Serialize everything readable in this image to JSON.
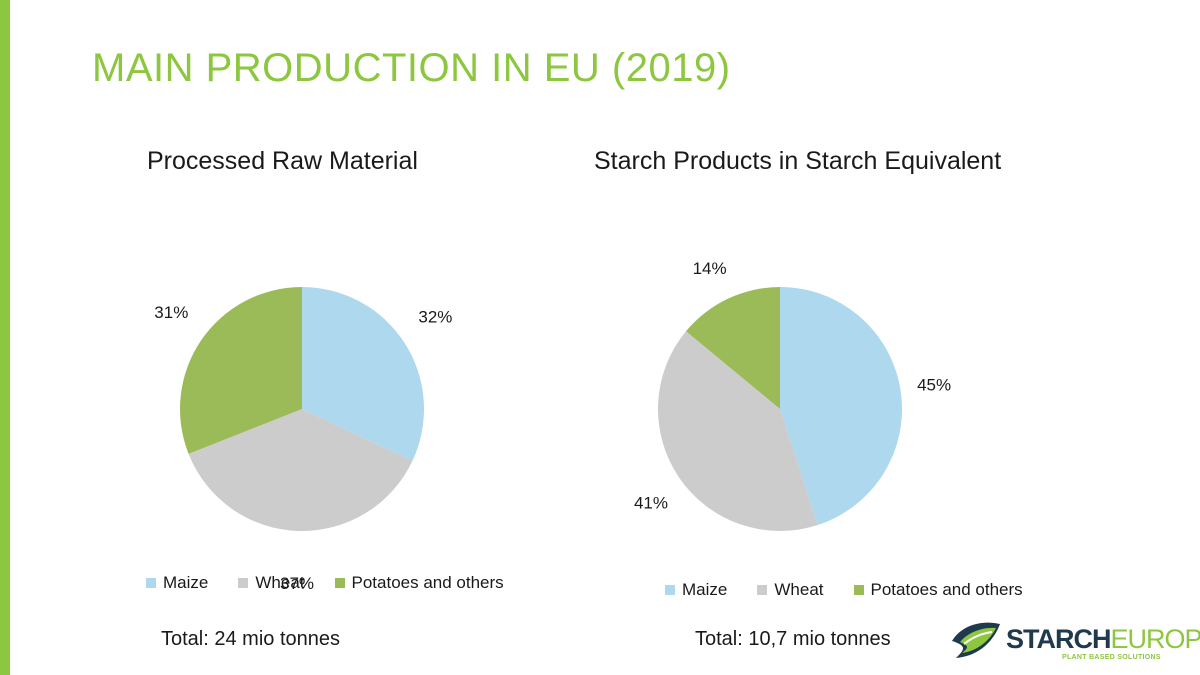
{
  "page": {
    "title": "MAIN PRODUCTION IN EU (2019)"
  },
  "colors": {
    "accent": "#8dc63f",
    "maize": "#add8ee",
    "wheat": "#cccccc",
    "potatoes": "#9bbb59",
    "logo_dark": "#1f3a4d"
  },
  "chart_data": [
    {
      "type": "pie",
      "title": "Processed Raw Material",
      "categories": [
        "Maize",
        "Wheat",
        "Potatoes and others"
      ],
      "values": [
        32,
        37,
        31
      ],
      "labels": [
        "32%",
        "37%",
        "31%"
      ],
      "legend": "bottom",
      "total": "Total: 24 mio tonnes"
    },
    {
      "type": "pie",
      "title": "Starch Products in Starch Equivalent",
      "categories": [
        "Maize",
        "Wheat",
        "Potatoes and others"
      ],
      "values": [
        45,
        41,
        14
      ],
      "labels": [
        "45%",
        "41%",
        "14%"
      ],
      "legend": "bottom",
      "total": "Total: 10,7 mio tonnes"
    }
  ],
  "logo": {
    "name_part1": "STARCH",
    "name_part2": "EUROPE",
    "tagline": "PLANT BASED SOLUTIONS",
    "icon": "leaf-logo-icon"
  }
}
